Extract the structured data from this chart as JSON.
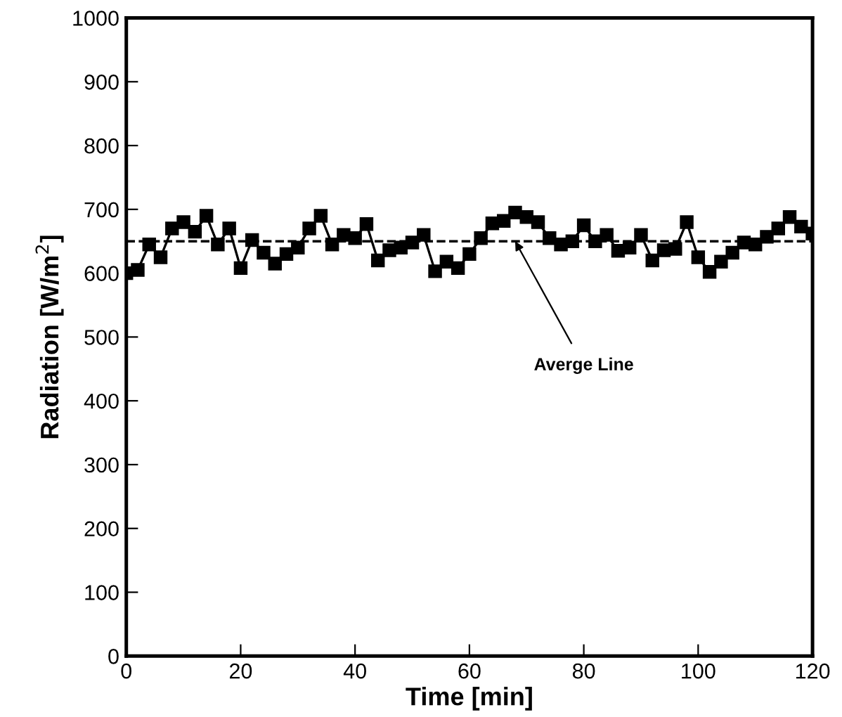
{
  "chart_data": {
    "type": "line",
    "xlabel": "Time [min]",
    "ylabel": "Radiation [W/m$^{2}$]",
    "x": [
      0,
      2,
      4,
      6,
      8,
      10,
      12,
      14,
      16,
      18,
      20,
      22,
      24,
      26,
      28,
      30,
      32,
      34,
      36,
      38,
      40,
      42,
      44,
      46,
      48,
      50,
      52,
      54,
      56,
      58,
      60,
      62,
      64,
      66,
      68,
      70,
      72,
      74,
      76,
      78,
      80,
      82,
      84,
      86,
      88,
      90,
      92,
      94,
      96,
      98,
      100,
      102,
      104,
      106,
      108,
      110,
      112,
      114,
      116,
      118,
      120
    ],
    "series": [
      {
        "color": "#000000",
        "values": [
          600,
          605,
          645,
          625,
          670,
          680,
          665,
          690,
          645,
          670,
          608,
          652,
          632,
          615,
          630,
          640,
          670,
          690,
          645,
          660,
          655,
          677,
          620,
          636,
          640,
          648,
          660,
          603,
          618,
          608,
          630,
          655,
          678,
          682,
          695,
          688,
          680,
          655,
          645,
          650,
          675,
          650,
          660,
          635,
          640,
          660,
          620,
          636,
          638,
          680,
          625,
          602,
          618,
          632,
          648,
          645,
          657,
          670,
          688,
          673,
          662
        ]
      }
    ],
    "marker": "square",
    "line_style": "solid",
    "xlim": [
      0,
      120
    ],
    "xticks": [
      0,
      20,
      40,
      60,
      80,
      100,
      120
    ],
    "ylim": [
      0,
      1000
    ],
    "yticks": [
      0,
      100,
      200,
      300,
      400,
      500,
      600,
      700,
      800,
      900,
      1000
    ],
    "ref_lines": [
      {
        "axis": "y",
        "value": 650,
        "color": "#000000",
        "line_style": "dashed"
      }
    ],
    "annotations": [
      {
        "text": "Averge Line",
        "x": 68,
        "y": 650
      }
    ],
    "grid": false,
    "legend": false
  }
}
